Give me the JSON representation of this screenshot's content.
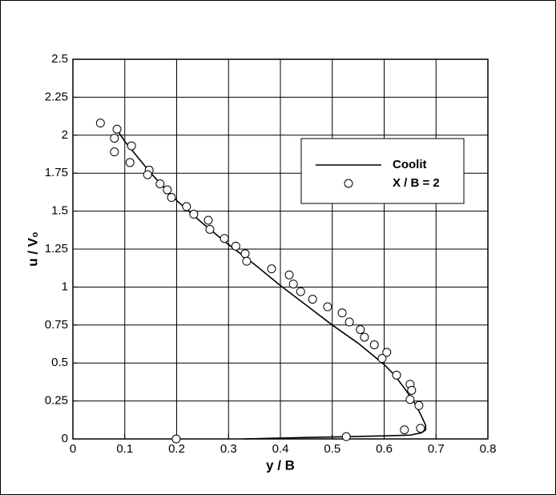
{
  "chart_data": {
    "type": "line-scatter",
    "x_label": "y / B",
    "y_label": "u / V₀",
    "xlim": [
      0,
      0.8
    ],
    "xticks": [
      0,
      0.1,
      0.2,
      0.3,
      0.4,
      0.5,
      0.6,
      0.7,
      0.8
    ],
    "ylim": [
      0,
      2.5
    ],
    "yticks": [
      0,
      0.25,
      0.5,
      0.75,
      1,
      1.25,
      1.5,
      1.75,
      2,
      2.25,
      2.5
    ],
    "grid": true,
    "legend": "upper right",
    "series": [
      {
        "name": "Coolit",
        "kind": "line",
        "color": "#000000",
        "x": [
          0.088,
          0.1,
          0.15,
          0.2,
          0.25,
          0.3,
          0.35,
          0.4,
          0.45,
          0.5,
          0.55,
          0.6,
          0.62,
          0.64,
          0.66,
          0.672,
          0.68,
          0.68,
          0.672,
          0.65,
          0.6,
          0.5,
          0.4,
          0.33
        ],
        "values": [
          2.02,
          1.96,
          1.75,
          1.57,
          1.42,
          1.28,
          1.15,
          1.01,
          0.88,
          0.75,
          0.63,
          0.49,
          0.42,
          0.33,
          0.23,
          0.15,
          0.09,
          0.06,
          0.04,
          0.025,
          0.02,
          0.013,
          0.006,
          0
        ]
      },
      {
        "name": "X / B = 2",
        "kind": "scatter",
        "color": "#000000",
        "x": [
          0.053,
          0.08,
          0.085,
          0.08,
          0.113,
          0.11,
          0.147,
          0.144,
          0.168,
          0.182,
          0.19,
          0.219,
          0.233,
          0.261,
          0.264,
          0.292,
          0.314,
          0.332,
          0.335,
          0.383,
          0.417,
          0.425,
          0.439,
          0.462,
          0.491,
          0.519,
          0.533,
          0.554,
          0.562,
          0.581,
          0.605,
          0.596,
          0.624,
          0.65,
          0.653,
          0.65,
          0.667,
          0.67,
          0.639,
          0.527,
          0.199
        ],
        "values": [
          2.08,
          1.98,
          2.04,
          1.89,
          1.93,
          1.82,
          1.77,
          1.74,
          1.68,
          1.64,
          1.59,
          1.53,
          1.48,
          1.44,
          1.38,
          1.32,
          1.27,
          1.22,
          1.17,
          1.12,
          1.08,
          1.02,
          0.97,
          0.92,
          0.87,
          0.83,
          0.77,
          0.72,
          0.67,
          0.62,
          0.57,
          0.53,
          0.42,
          0.36,
          0.32,
          0.26,
          0.22,
          0.07,
          0.06,
          0.015,
          0
        ]
      }
    ]
  }
}
